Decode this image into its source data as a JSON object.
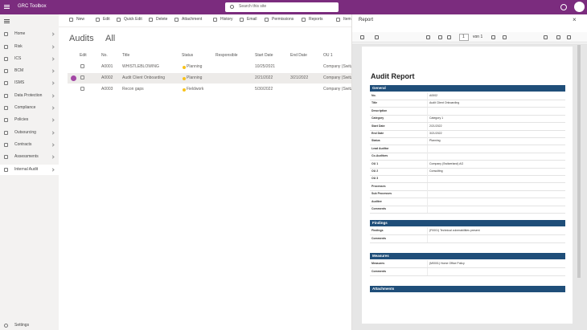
{
  "app": {
    "title": "GRC Toolbox",
    "search_placeholder": "Search this site"
  },
  "nav": {
    "items": [
      "Home",
      "Risk",
      "ICS",
      "BCM",
      "ISMS",
      "Data Protection",
      "Compliance",
      "Policies",
      "Outsourcing",
      "Contracts",
      "Assessments",
      "Internal Audit"
    ],
    "selected": 11,
    "footer": "Settings"
  },
  "commands": [
    "New",
    "Edit",
    "Quick Edit",
    "Delete",
    "Attachment",
    "History",
    "Email",
    "Permissions",
    "Reports",
    "Items"
  ],
  "list": {
    "title": "Audits",
    "view": "All",
    "columns": [
      "Edit",
      "No.",
      "Title",
      "Status",
      "Responsible",
      "Start Date",
      "End Date",
      "OU 1"
    ],
    "rows": [
      {
        "no": "A0001",
        "title": "WHISTLEBLOWING",
        "status": "Planning",
        "start": "10/25/2021",
        "ou1": "Company (Switz"
      },
      {
        "no": "A0002",
        "title": "Audit Client Onboarding",
        "status": "Planning",
        "start": "2/21/2022",
        "end": "3/21/2022",
        "ou1": "Company (Switz"
      },
      {
        "no": "A0003",
        "title": "Recon gaps",
        "status": "Fieldwork",
        "start": "5/30/2022",
        "ou1": "Company (Switz"
      }
    ],
    "selected_row": 1
  },
  "panel": {
    "title": "Report",
    "viewer": {
      "page": "1",
      "page_count": "von 1"
    },
    "document": {
      "title": "Audit Report",
      "sections": [
        {
          "heading": "General",
          "fields": [
            {
              "label": "No.",
              "value": "A0002"
            },
            {
              "label": "Title",
              "value": "Audit Client Onboarding"
            },
            {
              "label": "Description"
            },
            {
              "label": "Category",
              "value": "Category 1"
            },
            {
              "label": "Start Date",
              "value": "2/21/2022"
            },
            {
              "label": "End Date",
              "value": "3/21/2022"
            },
            {
              "label": "Status",
              "value": "Planning"
            },
            {
              "label": "Lead Auditor"
            },
            {
              "label": "Co-Auditors"
            },
            {
              "label": "OU 1",
              "value": "Company (Switzerland) AG"
            },
            {
              "label": "OU 2",
              "value": "Consulting"
            },
            {
              "label": "OU 3"
            },
            {
              "label": "Processes"
            },
            {
              "label": "Sub Processes"
            },
            {
              "label": "Auditee"
            },
            {
              "label": "Comments"
            }
          ]
        },
        {
          "heading": "Findings",
          "fields": [
            {
              "label": "Findings",
              "value": "(F0001) Technical vulnerabilities present"
            },
            {
              "label": "Comments"
            }
          ]
        },
        {
          "heading": "Measures",
          "fields": [
            {
              "label": "Measures",
              "value": "(M0001) Home Office Policy"
            },
            {
              "label": "Comments"
            }
          ]
        },
        {
          "heading": "Attachments",
          "fields": []
        }
      ]
    }
  }
}
